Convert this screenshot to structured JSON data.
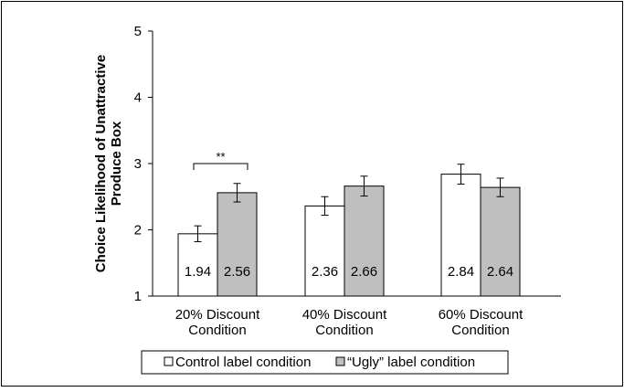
{
  "chart_data": {
    "type": "bar",
    "ylabel": "Choice Likelihood of Unattractive Produce Box",
    "ylim": [
      1,
      5
    ],
    "yticks": [
      1,
      2,
      3,
      4,
      5
    ],
    "categories": [
      "20% Discount Condition",
      "40% Discount Condition",
      "60% Discount Condition"
    ],
    "series": [
      {
        "name": "Control label condition",
        "values": [
          1.94,
          2.36,
          2.84
        ],
        "error": [
          0.12,
          0.14,
          0.15
        ],
        "color": "#ffffff"
      },
      {
        "name": "“Ugly” label condition",
        "values": [
          2.56,
          2.66,
          2.64
        ],
        "error": [
          0.14,
          0.15,
          0.14
        ],
        "color": "#bfbfbf"
      }
    ],
    "data_labels": [
      [
        "1.94",
        "2.56"
      ],
      [
        "2.36",
        "2.66"
      ],
      [
        "2.84",
        "2.64"
      ]
    ],
    "annotations": [
      {
        "text": "**",
        "category": "20% Discount Condition"
      }
    ],
    "grid": false,
    "legend_position": "bottom"
  }
}
